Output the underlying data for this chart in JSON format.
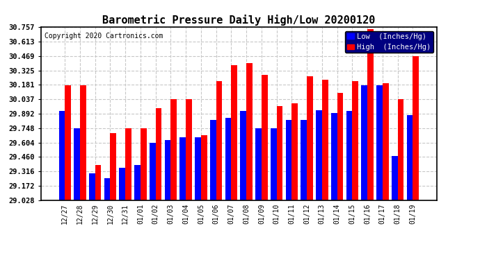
{
  "title": "Barometric Pressure Daily High/Low 20200120",
  "copyright": "Copyright 2020 Cartronics.com",
  "categories": [
    "12/27",
    "12/28",
    "12/29",
    "12/30",
    "12/31",
    "01/01",
    "01/02",
    "01/03",
    "01/04",
    "01/05",
    "01/06",
    "01/07",
    "01/08",
    "01/09",
    "01/10",
    "01/11",
    "01/12",
    "01/13",
    "01/14",
    "01/15",
    "01/16",
    "01/17",
    "01/18",
    "01/19"
  ],
  "low_values": [
    29.92,
    29.75,
    29.3,
    29.25,
    29.35,
    29.38,
    29.6,
    29.63,
    29.66,
    29.66,
    29.83,
    29.85,
    29.92,
    29.75,
    29.75,
    29.83,
    29.83,
    29.93,
    29.9,
    29.92,
    30.18,
    30.18,
    29.47,
    29.88
  ],
  "high_values": [
    30.18,
    30.18,
    29.38,
    29.7,
    29.75,
    29.75,
    29.95,
    30.04,
    30.04,
    29.68,
    30.22,
    30.38,
    30.4,
    30.28,
    29.97,
    30.0,
    30.27,
    30.23,
    30.1,
    30.22,
    30.74,
    30.2,
    30.04,
    30.47
  ],
  "low_color": "#0000ff",
  "high_color": "#ff0000",
  "bg_color": "#ffffff",
  "ylim_min": 29.028,
  "ylim_max": 30.757,
  "yticks": [
    29.028,
    29.172,
    29.316,
    29.46,
    29.604,
    29.748,
    29.892,
    30.037,
    30.181,
    30.325,
    30.469,
    30.613,
    30.757
  ],
  "grid_color": "#c8c8c8",
  "title_fontsize": 11,
  "copyright_fontsize": 7,
  "legend_low_label": "Low  (Inches/Hg)",
  "legend_high_label": "High  (Inches/Hg)"
}
